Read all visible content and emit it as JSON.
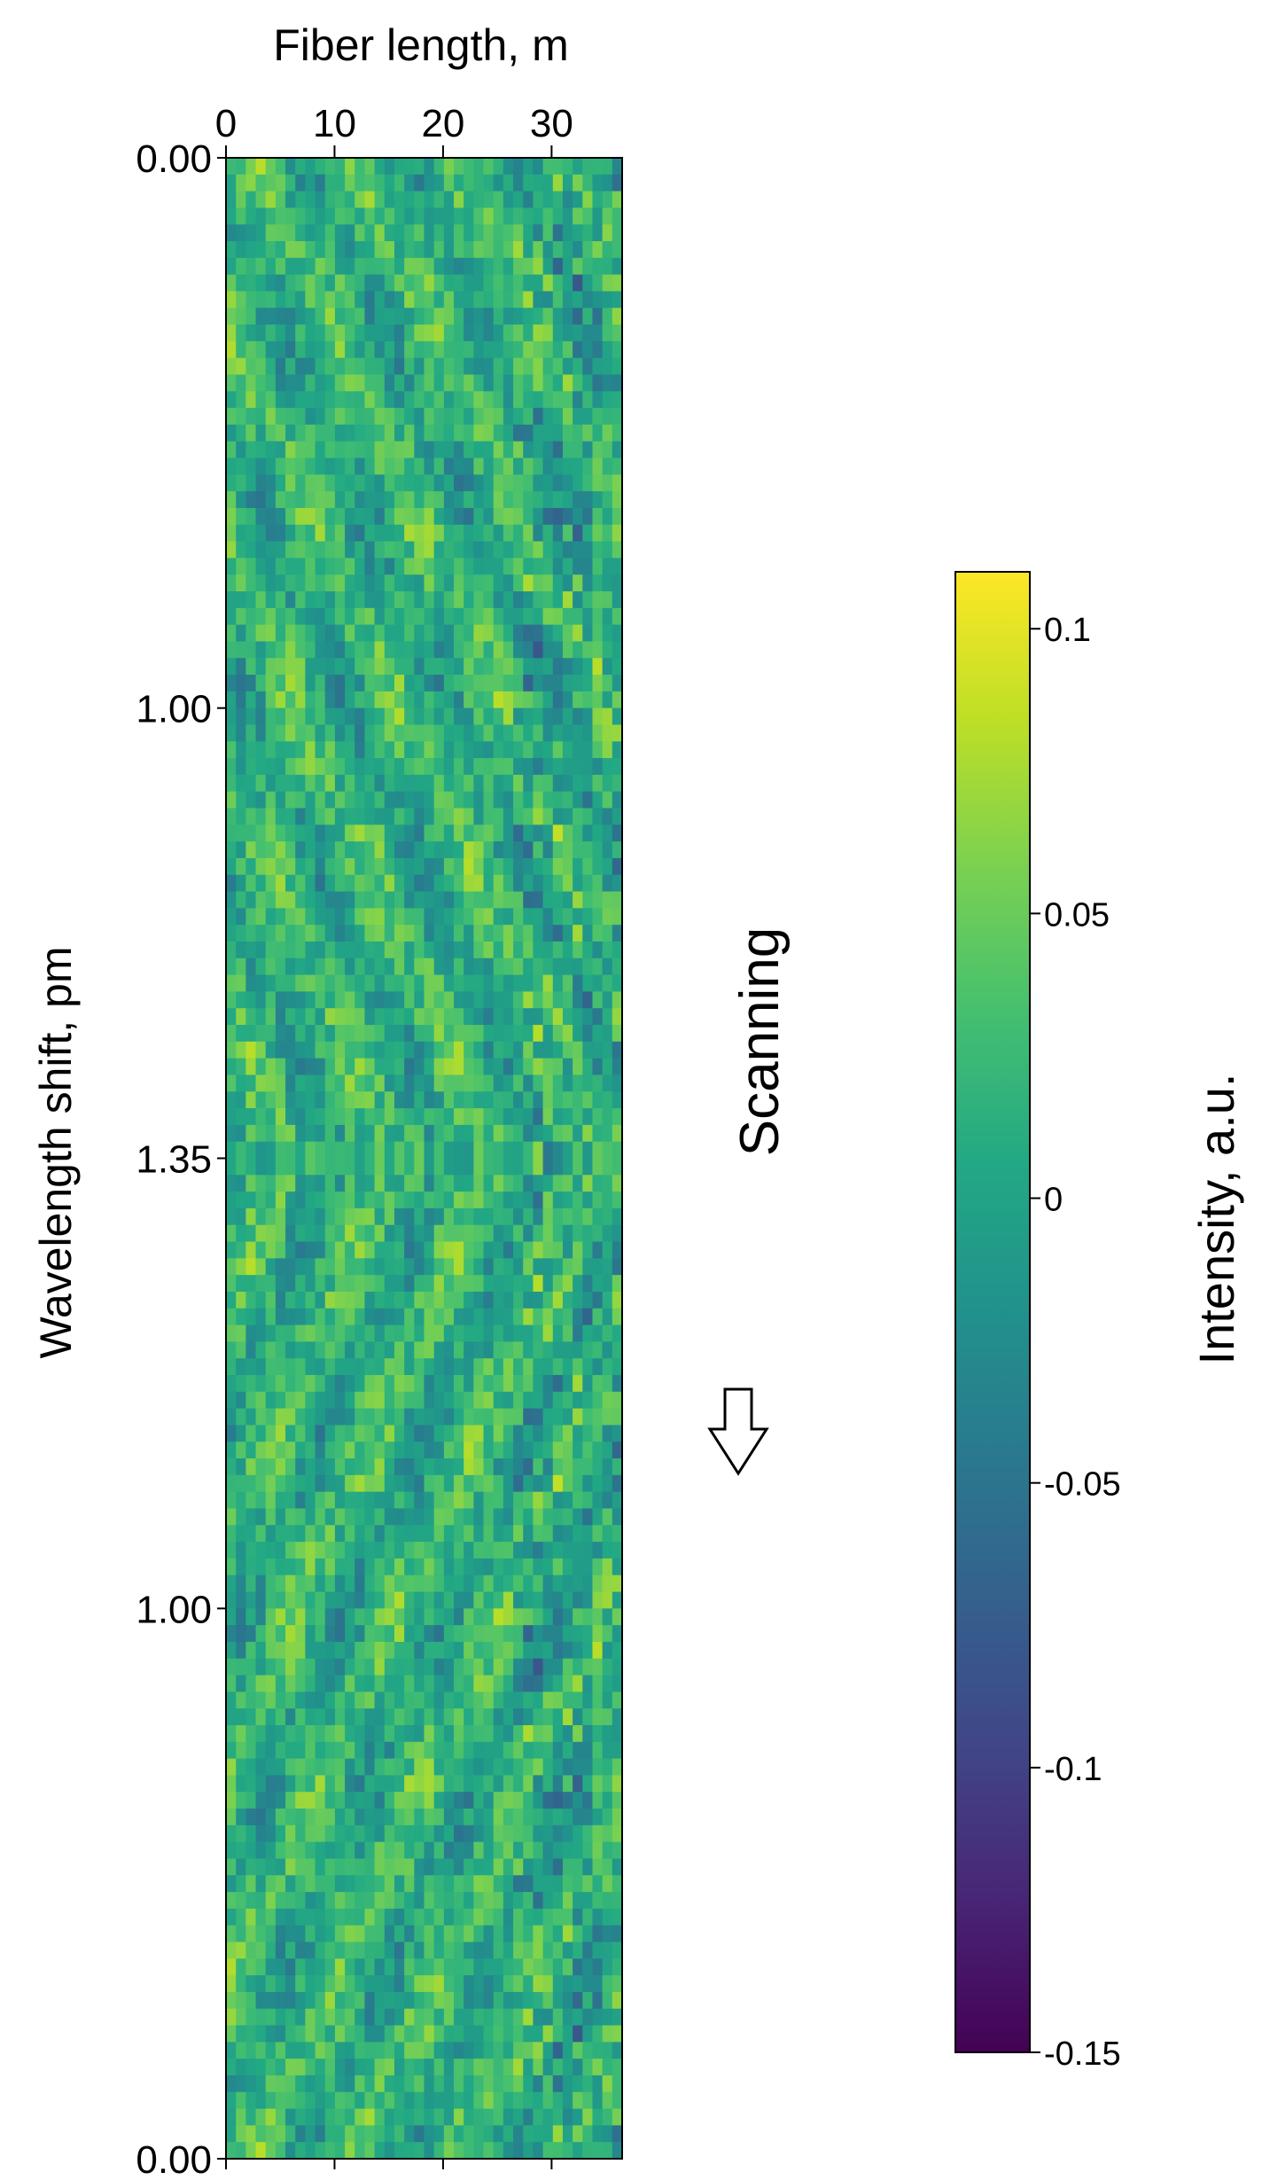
{
  "chart_data": {
    "type": "heatmap",
    "colormap": "viridis",
    "xlabel": "Fiber length, m",
    "x_axis_position": "top",
    "x_ticks": [
      0,
      10,
      20,
      30
    ],
    "x_tick_labels": [
      "0",
      "10",
      "20",
      "30"
    ],
    "xlim": [
      0,
      36.5
    ],
    "ylabel": "Wavelength shift, pm",
    "y_tick_labels": [
      "0.00",
      "1.00",
      "1.35",
      "1.00",
      "0.00"
    ],
    "y_tick_fractions": [
      0.0,
      0.275,
      0.5,
      0.725,
      1.0
    ],
    "colorbar": {
      "label": "Intensity,  a.u.",
      "range": [
        -0.15,
        0.11
      ],
      "ticks": [
        0.1,
        0.05,
        0,
        -0.05,
        -0.1,
        -0.15
      ],
      "tick_labels": [
        "0.1",
        "0.05",
        "0",
        "-0.05",
        "-0.1",
        "-0.15"
      ]
    },
    "annotation": {
      "text": "Scanning",
      "arrow": "down"
    },
    "grid": "off",
    "grid_shape": {
      "rows": 120,
      "cols": 40
    },
    "pattern_note": "mirror-symmetric about the 1.35 pm row"
  }
}
